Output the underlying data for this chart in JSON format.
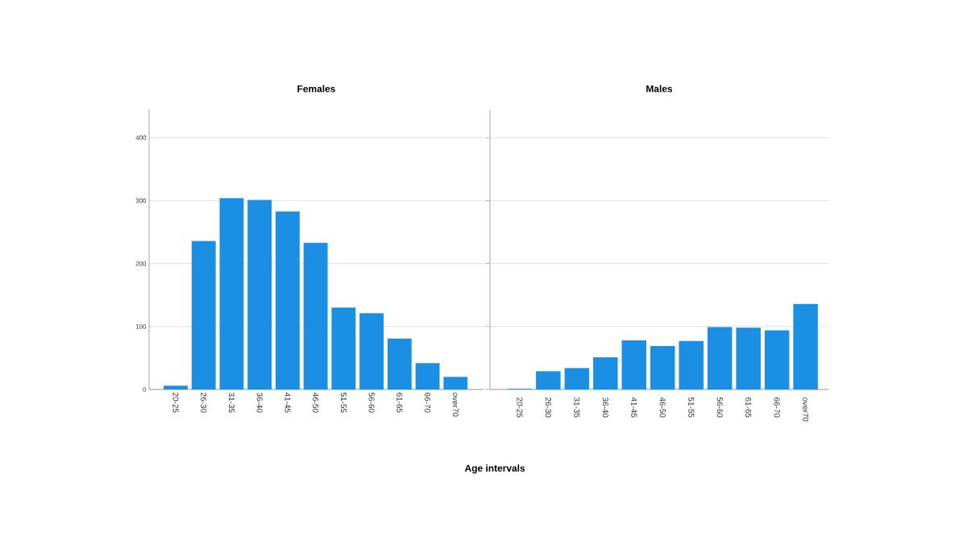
{
  "chart_data": [
    {
      "type": "bar",
      "title": "Females",
      "xlabel": "Age intervals",
      "categories": [
        "20-25",
        "26-30",
        "31-35",
        "36-40",
        "41-45",
        "46-50",
        "51-55",
        "56-60",
        "61-65",
        "66-70",
        "over70"
      ],
      "values": [
        6,
        236,
        304,
        301,
        283,
        233,
        130,
        121,
        81,
        42,
        20
      ],
      "color": "#1a8fe3",
      "ylim": [
        0,
        445
      ],
      "yticks": [
        0,
        100,
        200,
        300,
        400
      ],
      "grid": "y"
    },
    {
      "type": "bar",
      "title": "Males",
      "categories": [
        "20-25",
        "26-30",
        "31-35",
        "36-40",
        "41-45",
        "46-50",
        "51-55",
        "56-60",
        "61-65",
        "66-70",
        "over70"
      ],
      "values": [
        1,
        29,
        34,
        51,
        78,
        69,
        77,
        99,
        98,
        94,
        136
      ],
      "color": "#1a8fe3",
      "ylim": [
        0,
        445
      ],
      "yticks": [
        0,
        100,
        200,
        300,
        400
      ],
      "grid": "y",
      "tick_labels": "x"
    }
  ]
}
